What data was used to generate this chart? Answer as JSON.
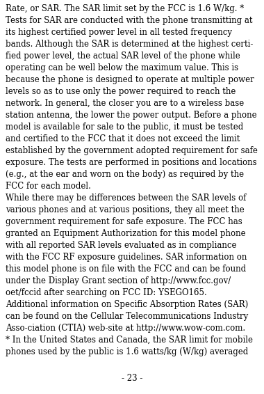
{
  "background_color": "#ffffff",
  "text_color": "#000000",
  "font_family": "DejaVu Serif",
  "font_size": 8.5,
  "page_number": "- 23 -",
  "page_number_fontsize": 8.5,
  "lines": [
    "Rate, or SAR. The SAR limit set by the FCC is 1.6 W/kg. *",
    "Tests for SAR are conducted with the phone transmitting at",
    "its highest certified power level in all tested frequency",
    "bands. Although the SAR is determined at the highest certi-",
    "fied power level, the actual SAR level of the phone while",
    "operating can be well below the maximum value. This is",
    "because the phone is designed to operate at multiple power",
    "levels so as to use only the power required to reach the",
    "network. In general, the closer you are to a wireless base",
    "station antenna, the lower the power output. Before a phone",
    "model is available for sale to the public, it must be tested",
    "and certified to the FCC that it does not exceed the limit",
    "established by the government adopted requirement for safe",
    "exposure. The tests are performed in positions and locations",
    "(e.g., at the ear and worn on the body) as required by the",
    "FCC for each model.",
    "While there may be differences between the SAR levels of",
    "various phones and at various positions, they all meet the",
    "government requirement for safe exposure. The FCC has",
    "granted an Equipment Authorization for this model phone",
    "with all reported SAR levels evaluated as in compliance",
    "with the FCC RF exposure guidelines. SAR information on",
    "this model phone is on file with the FCC and can be found",
    "under the Display Grant section of http://www.fcc.gov/",
    "oet/fccid after searching on FCC ID: YSEGO165.",
    "Additional information on Specific Absorption Rates (SAR)",
    "can be found on the Cellular Telecommunications Industry",
    "Asso-ciation (CTIA) web-site at http://www.wow-com.com.",
    "* In the United States and Canada, the SAR limit for mobile",
    "phones used by the public is 1.6 watts/kg (W/kg) averaged"
  ]
}
